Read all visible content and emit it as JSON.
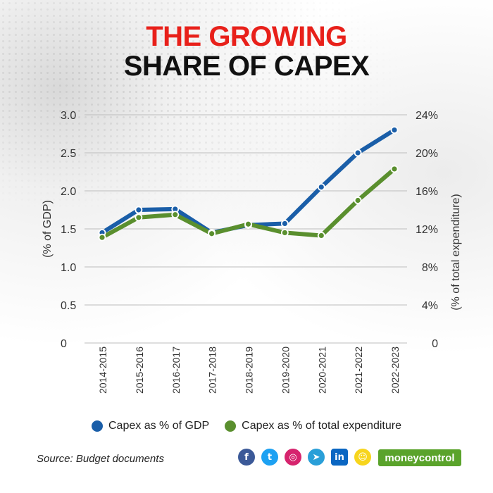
{
  "title": {
    "line1": "THE GROWING",
    "line2": "SHARE OF CAPEX"
  },
  "source": "Source: Budget documents",
  "brand": "moneycontrol",
  "social_icons": [
    {
      "name": "facebook-icon",
      "glyph": "f",
      "color": "#3b5998"
    },
    {
      "name": "twitter-icon",
      "glyph": "t",
      "color": "#1da1f2"
    },
    {
      "name": "instagram-icon",
      "glyph": "◎",
      "color": "#d6246e"
    },
    {
      "name": "telegram-icon",
      "glyph": "➤",
      "color": "#2a9fd8"
    },
    {
      "name": "linkedin-icon",
      "glyph": "in",
      "color": "#0a66c2"
    },
    {
      "name": "snapchat-icon",
      "glyph": "☺",
      "color": "#f7d51d"
    }
  ],
  "chart_data": {
    "type": "line",
    "categories": [
      "2014-2015",
      "2015-2016",
      "2016-2017",
      "2017-2018",
      "2018-2019",
      "2019-2020",
      "2020-2021",
      "2021-2022",
      "2022-2023"
    ],
    "y_left": {
      "label": "(% of GDP)",
      "range": [
        0,
        3.0
      ],
      "ticks": [
        "3.0",
        "2.5",
        "2.0",
        "1.5",
        "1.0",
        "0.5",
        "0"
      ],
      "tick_values": [
        3.0,
        2.5,
        2.0,
        1.5,
        1.0,
        0.5,
        0
      ]
    },
    "y_right": {
      "label": "(% of total expenditure)",
      "range": [
        0,
        24
      ],
      "ticks": [
        "24%",
        "20%",
        "16%",
        "12%",
        "8%",
        "4%",
        "0"
      ],
      "tick_values": [
        24,
        20,
        16,
        12,
        8,
        4,
        0
      ]
    },
    "series": [
      {
        "name": "Capex as % of GDP",
        "axis": "left",
        "color": "#1a5ea8",
        "values": [
          1.45,
          1.75,
          1.76,
          1.45,
          1.55,
          1.57,
          2.05,
          2.5,
          2.8
        ]
      },
      {
        "name": "Capex as % of total expenditure",
        "axis": "right",
        "color": "#5a8f2e",
        "values": [
          11.1,
          13.2,
          13.5,
          11.5,
          12.5,
          11.6,
          11.3,
          15.0,
          18.3
        ]
      }
    ],
    "grid": true,
    "legend_position": "bottom"
  }
}
